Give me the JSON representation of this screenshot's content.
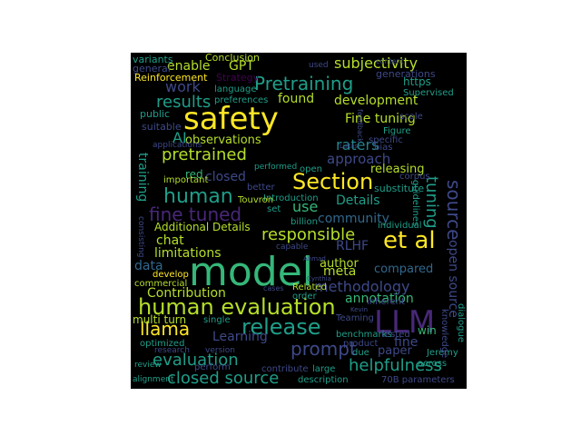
{
  "wordcloud": {
    "background": "#000000",
    "palette": {
      "yellow": "#fde725",
      "lime": "#b5de2b",
      "green": "#35b779",
      "teal": "#1f9e89",
      "cyan": "#26828e",
      "blue": "#31688e",
      "indigo": "#3e4989",
      "purple": "#482878",
      "dark": "#440154"
    },
    "words": [
      {
        "text": "safety",
        "color": "yellow"
      },
      {
        "text": "model",
        "color": "green"
      },
      {
        "text": "LLM",
        "color": "purple"
      },
      {
        "text": "Section",
        "color": "yellow"
      },
      {
        "text": "human evaluation",
        "color": "lime"
      },
      {
        "text": "release",
        "color": "teal"
      },
      {
        "text": "et al",
        "color": "yellow"
      },
      {
        "text": "human",
        "color": "teal"
      },
      {
        "text": "Pretraining",
        "color": "teal"
      },
      {
        "text": "fine tuned",
        "color": "purple"
      },
      {
        "text": "prompt",
        "color": "indigo"
      },
      {
        "text": "responsible",
        "color": "lime"
      },
      {
        "text": "pretrained",
        "color": "lime"
      },
      {
        "text": "llama",
        "color": "yellow"
      },
      {
        "text": "evaluation",
        "color": "teal"
      },
      {
        "text": "closed source",
        "color": "teal"
      },
      {
        "text": "helpfulness",
        "color": "teal"
      },
      {
        "text": "subjectivity",
        "color": "lime"
      },
      {
        "text": "methodology",
        "color": "indigo"
      },
      {
        "text": "results",
        "color": "teal"
      },
      {
        "text": "development",
        "color": "lime"
      },
      {
        "text": "work",
        "color": "indigo"
      },
      {
        "text": "Contribution",
        "color": "lime"
      },
      {
        "text": "source",
        "color": "indigo"
      },
      {
        "text": "open source",
        "color": "indigo"
      },
      {
        "text": "tuning",
        "color": "teal"
      },
      {
        "text": "Fine tuning",
        "color": "lime"
      },
      {
        "text": "raters",
        "color": "cyan"
      },
      {
        "text": "use",
        "color": "green"
      },
      {
        "text": "Details",
        "color": "teal"
      },
      {
        "text": "AI",
        "color": "teal"
      },
      {
        "text": "observations",
        "color": "lime"
      },
      {
        "text": "approach",
        "color": "indigo"
      },
      {
        "text": "training",
        "color": "teal"
      },
      {
        "text": "data",
        "color": "blue"
      },
      {
        "text": "GPT",
        "color": "lime"
      },
      {
        "text": "enable",
        "color": "lime"
      },
      {
        "text": "found",
        "color": "lime"
      },
      {
        "text": "red",
        "color": "green"
      },
      {
        "text": "chat",
        "color": "lime"
      },
      {
        "text": "limitations",
        "color": "lime"
      },
      {
        "text": "closed",
        "color": "indigo"
      },
      {
        "text": "community",
        "color": "blue"
      },
      {
        "text": "author",
        "color": "lime"
      },
      {
        "text": "meta",
        "color": "lime"
      },
      {
        "text": "compared",
        "color": "blue"
      },
      {
        "text": "annotation",
        "color": "green"
      },
      {
        "text": "RLHF",
        "color": "indigo"
      },
      {
        "text": "Additional Details",
        "color": "lime"
      },
      {
        "text": "multi turn",
        "color": "lime"
      },
      {
        "text": "Learning",
        "color": "indigo"
      },
      {
        "text": "fine",
        "color": "indigo"
      },
      {
        "text": "paper",
        "color": "indigo"
      },
      {
        "text": "win",
        "color": "green"
      },
      {
        "text": "releasing",
        "color": "lime"
      },
      {
        "text": "generations",
        "color": "indigo"
      },
      {
        "text": "https",
        "color": "teal"
      },
      {
        "text": "Supervised",
        "color": "teal"
      },
      {
        "text": "Conclusion",
        "color": "lime"
      },
      {
        "text": "Reinforcement",
        "color": "yellow"
      },
      {
        "text": "variants",
        "color": "teal"
      },
      {
        "text": "general",
        "color": "indigo"
      },
      {
        "text": "Strategy",
        "color": "dark"
      },
      {
        "text": "language",
        "color": "teal"
      },
      {
        "text": "preferences",
        "color": "teal"
      },
      {
        "text": "public",
        "color": "teal"
      },
      {
        "text": "suitable",
        "color": "indigo"
      },
      {
        "text": "applications",
        "color": "indigo"
      },
      {
        "text": "important",
        "color": "lime"
      },
      {
        "text": "better",
        "color": "indigo"
      },
      {
        "text": "Introduction",
        "color": "teal"
      },
      {
        "text": "set",
        "color": "teal"
      },
      {
        "text": "Touvron",
        "color": "lime"
      },
      {
        "text": "substitute",
        "color": "teal"
      },
      {
        "text": "corpus",
        "color": "indigo"
      },
      {
        "text": "billion",
        "color": "teal"
      },
      {
        "text": "individual",
        "color": "teal"
      },
      {
        "text": "guidelines",
        "color": "teal"
      },
      {
        "text": "capable",
        "color": "indigo"
      },
      {
        "text": "open",
        "color": "teal"
      },
      {
        "text": "bias",
        "color": "indigo"
      },
      {
        "text": "scale",
        "color": "indigo"
      },
      {
        "text": "Figure",
        "color": "teal"
      },
      {
        "text": "specific",
        "color": "indigo"
      },
      {
        "text": "performed",
        "color": "teal"
      },
      {
        "text": "develop",
        "color": "yellow"
      },
      {
        "text": "commercial",
        "color": "lime"
      },
      {
        "text": "Related",
        "color": "lime"
      },
      {
        "text": "order",
        "color": "teal"
      },
      {
        "text": "single",
        "color": "teal"
      },
      {
        "text": "Teaming",
        "color": "indigo"
      },
      {
        "text": "optimized",
        "color": "teal"
      },
      {
        "text": "benchmarks",
        "color": "teal"
      },
      {
        "text": "research",
        "color": "indigo"
      },
      {
        "text": "version",
        "color": "indigo"
      },
      {
        "text": "product",
        "color": "indigo"
      },
      {
        "text": "tested",
        "color": "indigo"
      },
      {
        "text": "Jeremy",
        "color": "teal"
      },
      {
        "text": "across",
        "color": "teal"
      },
      {
        "text": "inherent",
        "color": "indigo"
      },
      {
        "text": "due",
        "color": "teal"
      },
      {
        "text": "large",
        "color": "teal"
      },
      {
        "text": "perform",
        "color": "indigo"
      },
      {
        "text": "contribute",
        "color": "indigo"
      },
      {
        "text": "description",
        "color": "teal"
      },
      {
        "text": "70B parameters",
        "color": "indigo"
      },
      {
        "text": "alignment",
        "color": "teal"
      },
      {
        "text": "review",
        "color": "teal"
      },
      {
        "text": "dialogue",
        "color": "teal"
      },
      {
        "text": "knowledge",
        "color": "indigo"
      },
      {
        "text": "consisting",
        "color": "indigo"
      },
      {
        "text": "used",
        "color": "indigo"
      },
      {
        "text": "content",
        "color": "indigo"
      },
      {
        "text": "feedback",
        "color": "indigo"
      },
      {
        "text": "cases",
        "color": "indigo"
      },
      {
        "text": "Ahmad",
        "color": "indigo"
      },
      {
        "text": "Lukas",
        "color": "indigo"
      },
      {
        "text": "Cynthia",
        "color": "indigo"
      },
      {
        "text": "Kevin",
        "color": "indigo"
      }
    ]
  }
}
